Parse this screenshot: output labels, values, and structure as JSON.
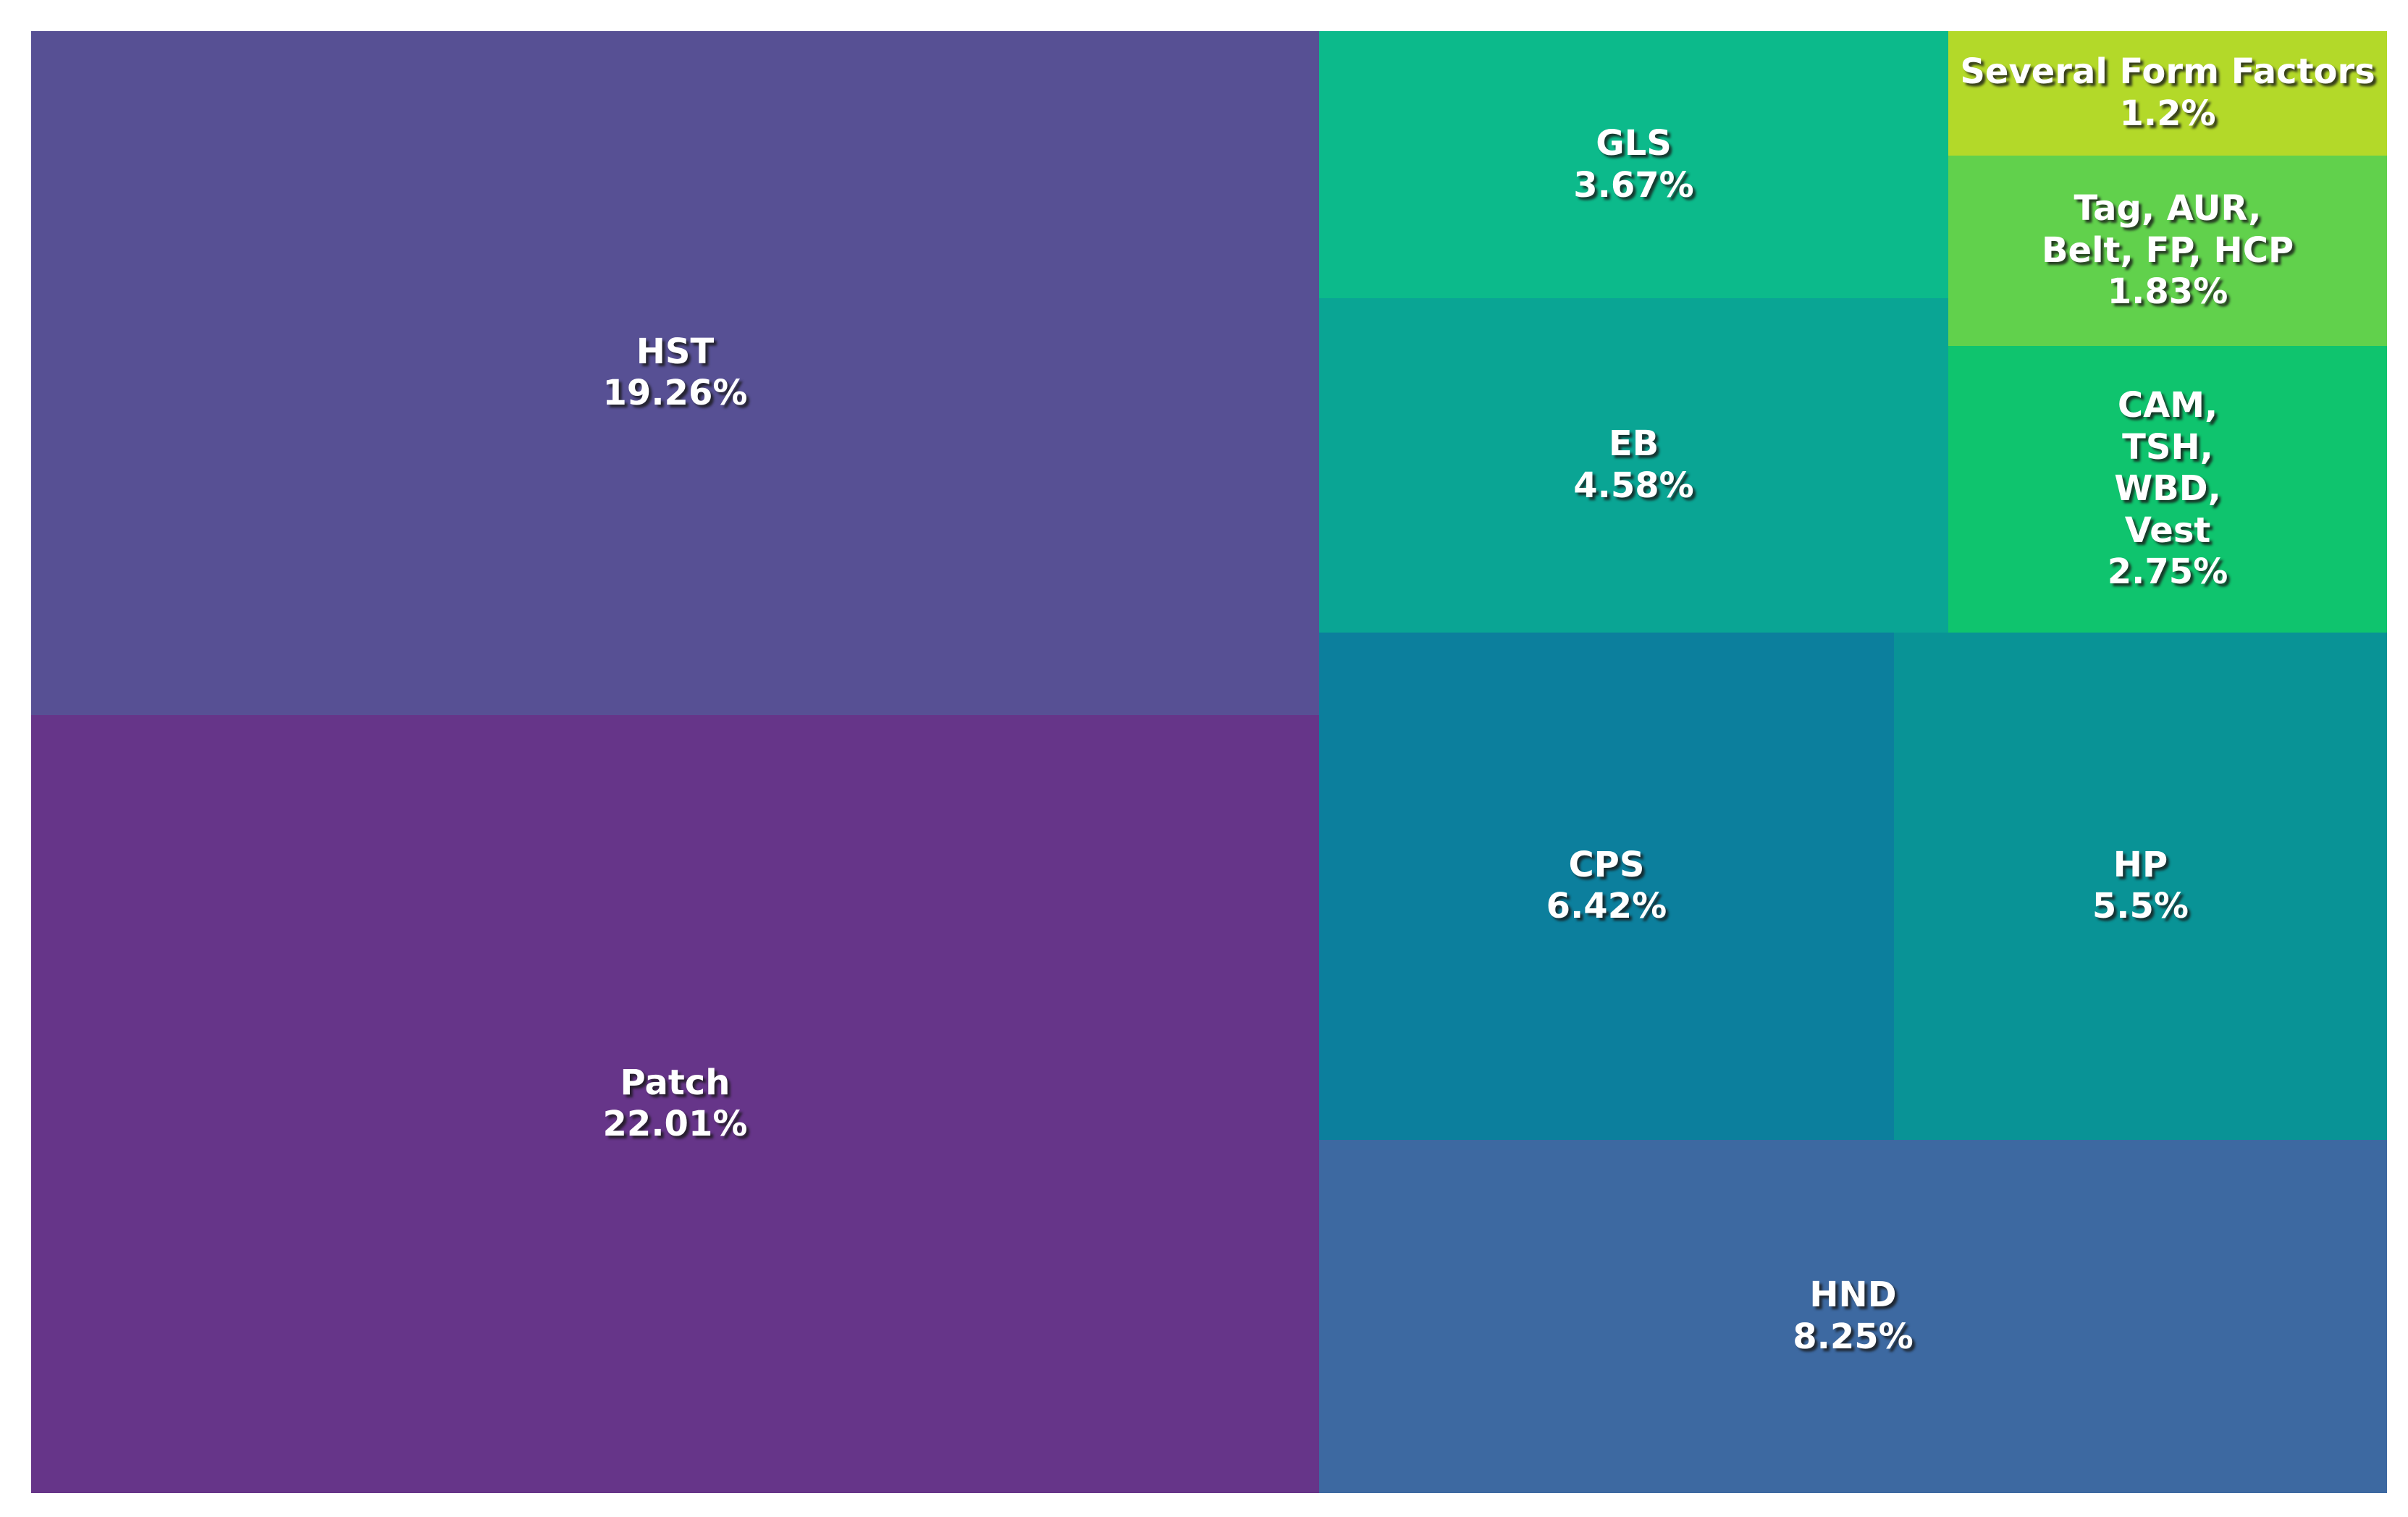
{
  "chart_data": {
    "type": "treemap",
    "title": "",
    "unit": "%",
    "background_color": "#ffffff",
    "label_text_color": "#ffffff",
    "tiles": [
      {
        "id": "hst",
        "label": "HST",
        "value": 19.26,
        "percent_label": "19.26%",
        "color": "#575094"
      },
      {
        "id": "patch",
        "label": "Patch",
        "value": 22.01,
        "percent_label": "22.01%",
        "color": "#663589"
      },
      {
        "id": "gls",
        "label": "GLS",
        "value": 3.67,
        "percent_label": "3.67%",
        "color": "#0cba8b"
      },
      {
        "id": "eb",
        "label": "EB",
        "value": 4.58,
        "percent_label": "4.58%",
        "color": "#0aa594"
      },
      {
        "id": "several-form-factors",
        "label": "Several Form Factors",
        "value": 1.2,
        "percent_label": "1.2%",
        "color": "#b3d929"
      },
      {
        "id": "tag-aur-belt-fp-hcp",
        "label": "Tag, AUR,\nBelt, FP, HCP",
        "value": 1.83,
        "percent_label": "1.83%",
        "color": "#61d14c"
      },
      {
        "id": "cam-tsh-wbd-vest",
        "label": "CAM,\nTSH,\nWBD,\nVest",
        "value": 2.75,
        "percent_label": "2.75%",
        "color": "#0fc46e"
      },
      {
        "id": "cps",
        "label": "CPS",
        "value": 6.42,
        "percent_label": "6.42%",
        "color": "#0c7f9d"
      },
      {
        "id": "hp",
        "label": "HP",
        "value": 5.5,
        "percent_label": "5.5%",
        "color": "#099396"
      },
      {
        "id": "hnd",
        "label": "HND",
        "value": 8.25,
        "percent_label": "8.25%",
        "color": "#3d69a1"
      }
    ]
  }
}
